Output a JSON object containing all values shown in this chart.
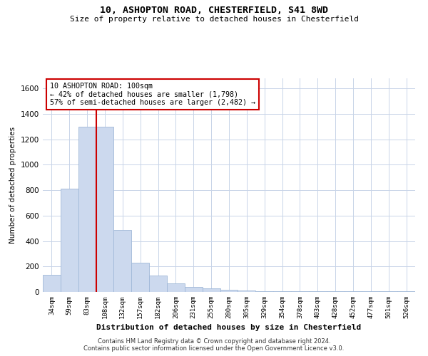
{
  "title1": "10, ASHOPTON ROAD, CHESTERFIELD, S41 8WD",
  "title2": "Size of property relative to detached houses in Chesterfield",
  "xlabel": "Distribution of detached houses by size in Chesterfield",
  "ylabel": "Number of detached properties",
  "categories": [
    "34sqm",
    "59sqm",
    "83sqm",
    "108sqm",
    "132sqm",
    "157sqm",
    "182sqm",
    "206sqm",
    "231sqm",
    "255sqm",
    "280sqm",
    "305sqm",
    "329sqm",
    "354sqm",
    "378sqm",
    "403sqm",
    "428sqm",
    "452sqm",
    "477sqm",
    "501sqm",
    "526sqm"
  ],
  "values": [
    134,
    810,
    1298,
    1298,
    490,
    230,
    130,
    65,
    37,
    27,
    18,
    12,
    8,
    8,
    8,
    8,
    8,
    8,
    8,
    8,
    8
  ],
  "bar_color": "#ccd9ee",
  "bar_edgecolor": "#a0b8d8",
  "vline_x": 2.5,
  "vline_color": "#cc0000",
  "annotation_text": "10 ASHOPTON ROAD: 100sqm\n← 42% of detached houses are smaller (1,798)\n57% of semi-detached houses are larger (2,482) →",
  "annotation_box_edgecolor": "#cc0000",
  "ylim": [
    0,
    1680
  ],
  "yticks": [
    0,
    200,
    400,
    600,
    800,
    1000,
    1200,
    1400,
    1600
  ],
  "footer1": "Contains HM Land Registry data © Crown copyright and database right 2024.",
  "footer2": "Contains public sector information licensed under the Open Government Licence v3.0.",
  "bg_color": "#ffffff",
  "grid_color": "#c8d4e8"
}
